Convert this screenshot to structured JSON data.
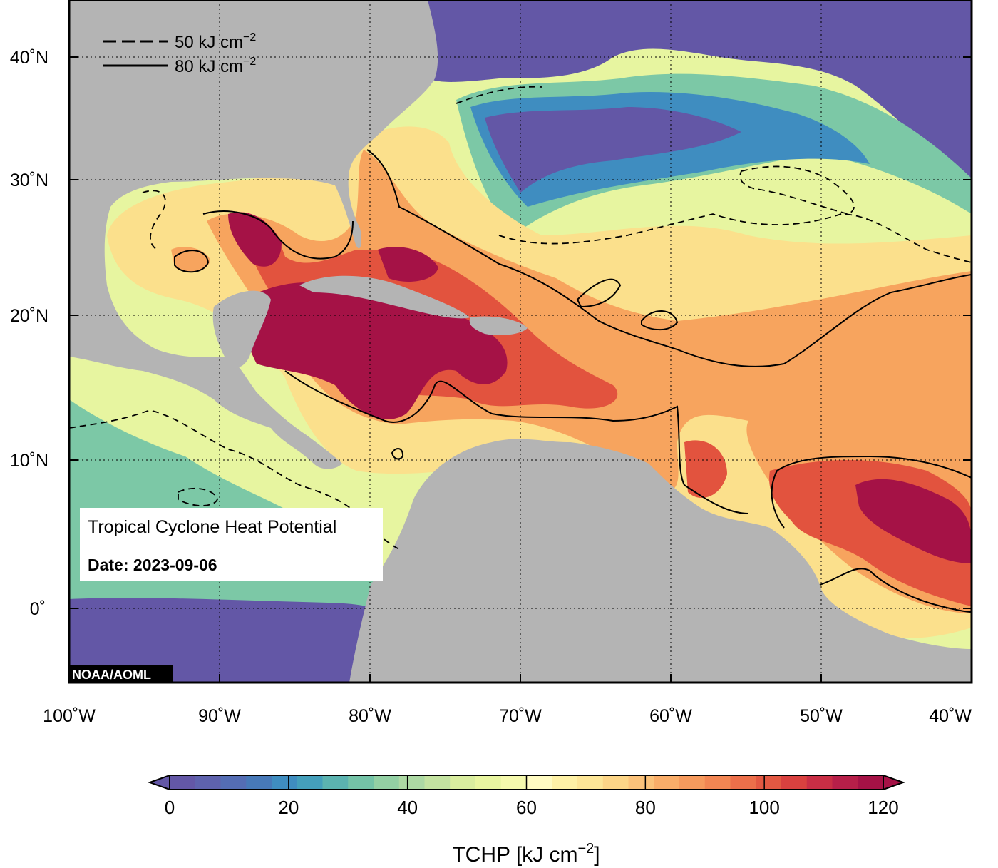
{
  "map": {
    "title_line": "Tropical Cyclone Heat Potential",
    "date_label": "Date:",
    "date_value": "2023-09-06",
    "credit": "NOAA/AOML",
    "lon_ticks": [
      "100˚W",
      "90˚W",
      "80˚W",
      "70˚W",
      "60˚W",
      "50˚W",
      "40˚W"
    ],
    "lat_ticks": [
      "40˚N",
      "30˚N",
      "20˚N",
      "10˚N",
      "0˚"
    ],
    "legend": {
      "dashed": {
        "value": "50 kJ cm",
        "exp": "−2"
      },
      "solid": {
        "value": "80 kJ cm",
        "exp": "−2"
      }
    },
    "colors": {
      "land": "#b4b4b4",
      "very_low": "#6357a6",
      "low": "#3f8dc0",
      "mid_low": "#7cc8a6",
      "mid": "#e7f5a0",
      "mid_high": "#fbe08c",
      "high": "#f7a45e",
      "very_high": "#e2533e",
      "extreme": "#a51246"
    }
  },
  "colorbar": {
    "ticks": [
      "0",
      "20",
      "40",
      "60",
      "80",
      "100",
      "120"
    ],
    "label": "TCHP [kJ cm",
    "label_exp": "−2",
    "label_end": "]",
    "colors": [
      "#6357a6",
      "#5e62ad",
      "#546db4",
      "#4779b8",
      "#3f8dc0",
      "#449fbb",
      "#5bb3b0",
      "#74c3a7",
      "#93d0a4",
      "#add9a4",
      "#c4e3a1",
      "#d9ed9f",
      "#e8f5a0",
      "#f5f9ad",
      "#fffbc2",
      "#fef1a6",
      "#fde697",
      "#fcd587",
      "#fbc27a",
      "#f9ad69",
      "#f69a5d",
      "#f28653",
      "#ec6f4a",
      "#e35842",
      "#d9413f",
      "#c92e45",
      "#b71f49",
      "#a51246"
    ]
  }
}
